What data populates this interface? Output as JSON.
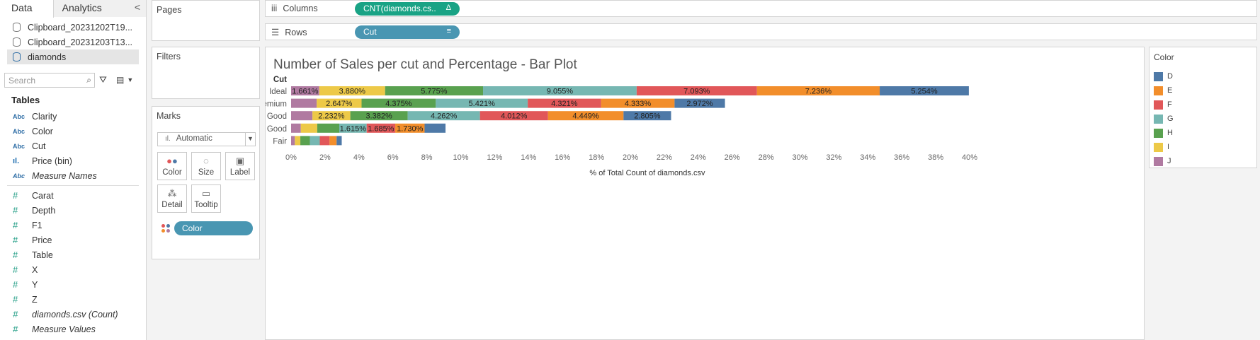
{
  "tabs": {
    "data": "Data",
    "analytics": "Analytics",
    "collapse": "<"
  },
  "sources": [
    "Clipboard_20231202T19...",
    "Clipboard_20231203T13...",
    "diamonds"
  ],
  "search": {
    "placeholder": "Search"
  },
  "tables_header": "Tables",
  "dimensions": [
    {
      "type": "Abc",
      "name": "Clarity"
    },
    {
      "type": "Abc",
      "name": "Color"
    },
    {
      "type": "Abc",
      "name": "Cut"
    },
    {
      "type": "bin",
      "name": "Price (bin)"
    },
    {
      "type": "Abc",
      "name": "Measure Names"
    }
  ],
  "measures": [
    "Carat",
    "Depth",
    "F1",
    "Price",
    "Table",
    "X",
    "Y",
    "Z",
    "diamonds.csv (Count)",
    "Measure Values"
  ],
  "cards": {
    "pages": "Pages",
    "filters": "Filters",
    "marks": "Marks",
    "mark_type": "Automatic",
    "buttons": [
      "Color",
      "Size",
      "Label",
      "Detail",
      "Tooltip"
    ],
    "color_pill": "Color"
  },
  "shelves": {
    "columns_label": "Columns",
    "columns_pill": "CNT(diamonds.cs..",
    "rows_label": "Rows",
    "rows_pill": "Cut"
  },
  "legend": {
    "title": "Color",
    "items": [
      {
        "name": "D",
        "color": "#4e79a7"
      },
      {
        "name": "E",
        "color": "#f28e2b"
      },
      {
        "name": "F",
        "color": "#e15759"
      },
      {
        "name": "G",
        "color": "#76b7b2"
      },
      {
        "name": "H",
        "color": "#59a14f"
      },
      {
        "name": "I",
        "color": "#edc948"
      },
      {
        "name": "J",
        "color": "#b07aa1"
      }
    ]
  },
  "chart_data": {
    "type": "bar",
    "orientation": "horizontal",
    "stacked": true,
    "title": "Number of Sales per cut and Percentage - Bar Plot",
    "xlabel": "% of Total Count of diamonds.csv",
    "ylabel": "Cut",
    "xlim": [
      0,
      42
    ],
    "xticks": [
      "0%",
      "2%",
      "4%",
      "6%",
      "8%",
      "10%",
      "12%",
      "14%",
      "16%",
      "18%",
      "20%",
      "22%",
      "24%",
      "26%",
      "28%",
      "30%",
      "32%",
      "34%",
      "36%",
      "38%",
      "40%"
    ],
    "categories": [
      "Ideal",
      "Premium",
      "Very Good",
      "Good",
      "Fair"
    ],
    "stack_order": [
      "J",
      "I",
      "H",
      "G",
      "F",
      "E",
      "D"
    ],
    "series": [
      {
        "name": "J",
        "color": "#b07aa1",
        "values": [
          1.661,
          1.508,
          1.259,
          0.572,
          0.221
        ],
        "labels": [
          "1.661%",
          "",
          "",
          "",
          ""
        ]
      },
      {
        "name": "I",
        "color": "#edc948",
        "values": [
          3.88,
          2.647,
          2.232,
          0.968,
          0.324
        ],
        "labels": [
          "3.880%",
          "2.647%",
          "2.232%",
          "",
          ""
        ]
      },
      {
        "name": "H",
        "color": "#59a14f",
        "values": [
          5.775,
          4.375,
          3.382,
          1.299,
          0.564
        ],
        "labels": [
          "5.775%",
          "4.375%",
          "3.382%",
          "",
          ""
        ]
      },
      {
        "name": "G",
        "color": "#76b7b2",
        "values": [
          9.055,
          5.421,
          4.262,
          1.615,
          0.582
        ],
        "labels": [
          "9.055%",
          "5.421%",
          "4.262%",
          "1.615%",
          ""
        ]
      },
      {
        "name": "F",
        "color": "#e15759",
        "values": [
          7.093,
          4.321,
          4.012,
          1.685,
          0.577
        ],
        "labels": [
          "7.093%",
          "4.321%",
          "4.012%",
          "1.685%",
          ""
        ]
      },
      {
        "name": "E",
        "color": "#f28e2b",
        "values": [
          7.236,
          4.333,
          4.449,
          1.73,
          0.415
        ],
        "labels": [
          "7.236%",
          "4.333%",
          "4.449%",
          "1.730%",
          ""
        ]
      },
      {
        "name": "D",
        "color": "#4e79a7",
        "values": [
          5.254,
          2.972,
          2.805,
          1.235,
          0.302
        ],
        "labels": [
          "5.254%",
          "2.972%",
          "2.805%",
          "",
          ""
        ]
      }
    ]
  }
}
